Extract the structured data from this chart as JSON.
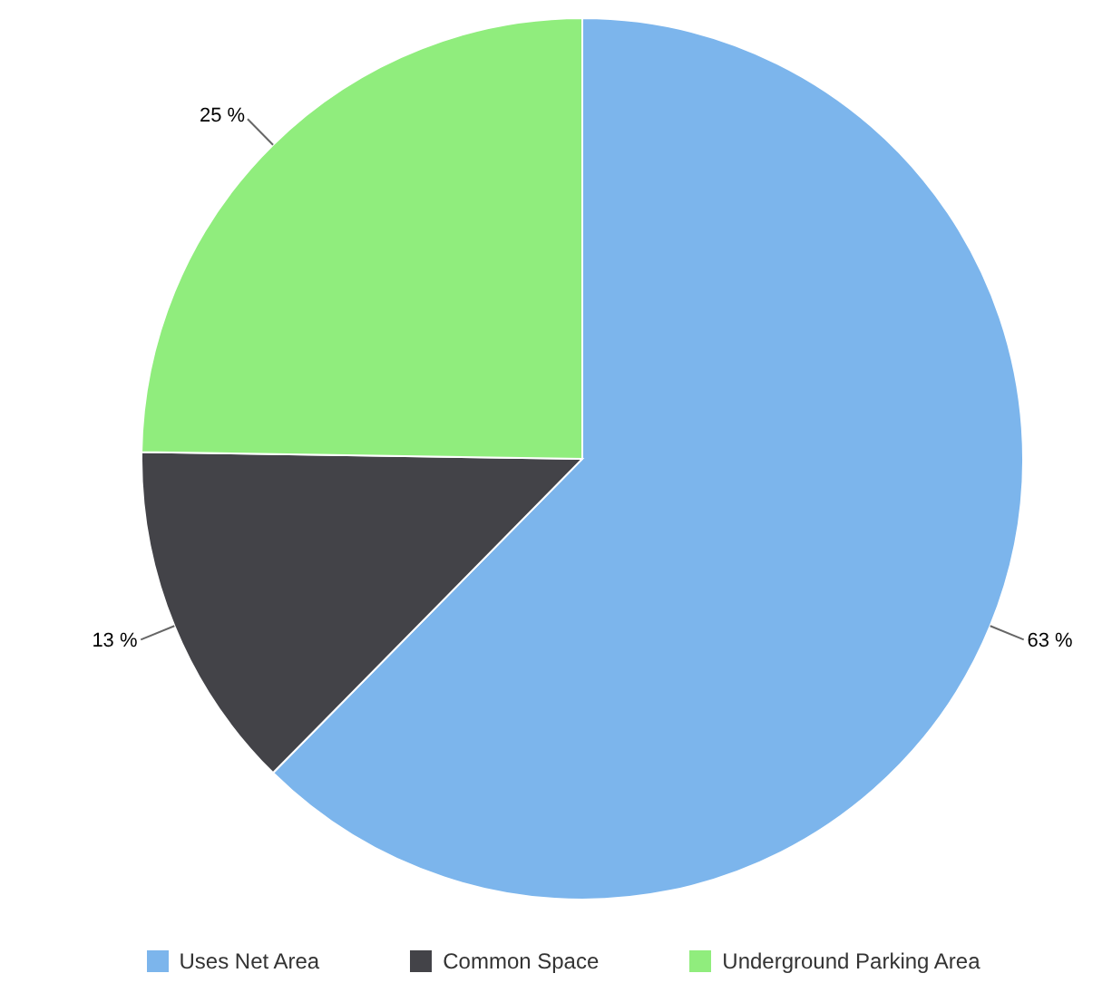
{
  "chart_data": {
    "type": "pie",
    "categories": [
      "Uses Net Area",
      "Common Space",
      "Underground Parking Area"
    ],
    "values": [
      63,
      13,
      25
    ],
    "colors": [
      "#7cb5ec",
      "#434348",
      "#90ed7d"
    ],
    "value_labels": [
      "63 %",
      "13 %",
      "25 %"
    ],
    "legend": "bottom"
  }
}
